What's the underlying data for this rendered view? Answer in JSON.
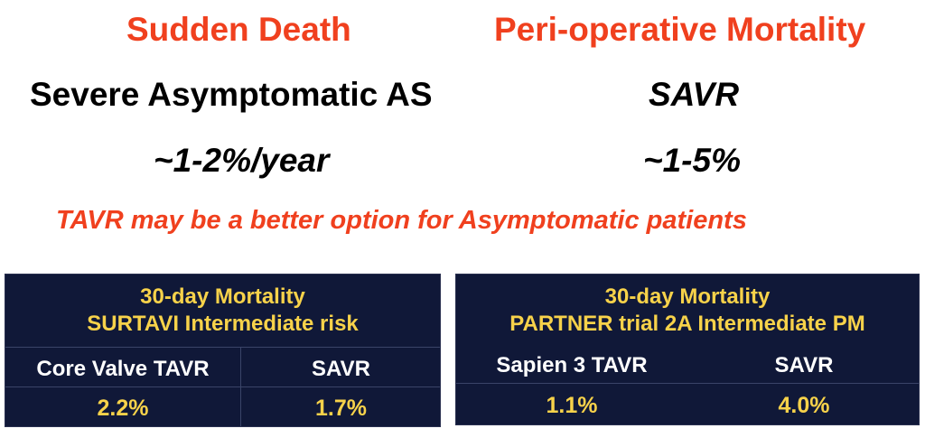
{
  "left_column": {
    "heading": "Sudden Death",
    "subject": "Severe Asymptomatic AS",
    "rate": "~1-2%/year"
  },
  "right_column": {
    "heading": "Peri-operative Mortality",
    "subject": "SAVR",
    "rate": "~1-5%"
  },
  "tagline": "TAVR may be a better option for Asymptomatic patients",
  "tables": [
    {
      "title_line1": "30-day Mortality",
      "title_line2": "SURTAVI Intermediate risk",
      "columns": [
        "Core Valve TAVR",
        "SAVR"
      ],
      "values": [
        "2.2%",
        "1.7%"
      ]
    },
    {
      "title_line1": "30-day Mortality",
      "title_line2": "PARTNER trial 2A Intermediate PM",
      "columns": [
        "Sapien 3 TAVR",
        "SAVR"
      ],
      "values": [
        "1.1%",
        "4.0%"
      ]
    }
  ],
  "colors": {
    "accent_red": "#f0401e",
    "table_bg": "#101838",
    "table_gold": "#f7d24a"
  }
}
